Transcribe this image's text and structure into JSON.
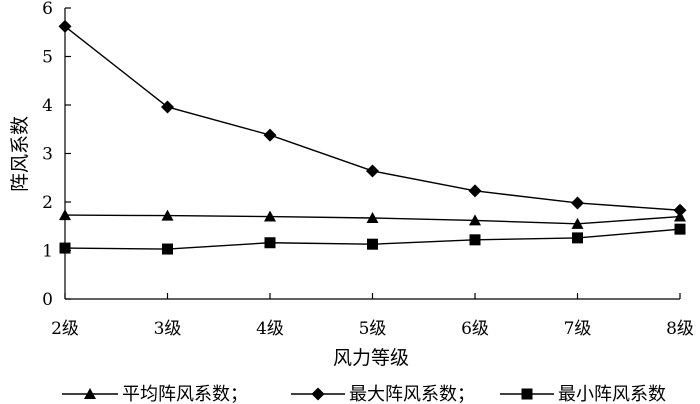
{
  "chart_data": {
    "type": "line",
    "categories": [
      "2级",
      "3级",
      "4级",
      "5级",
      "6级",
      "7级",
      "8级"
    ],
    "xlabel": "风力等级",
    "ylabel": "阵风系数",
    "ylim": [
      0,
      6
    ],
    "yticks": [
      "0",
      "1",
      "2",
      "3",
      "4",
      "5",
      "6"
    ],
    "grid": false,
    "legend_position": "bottom",
    "series": [
      {
        "name": "平均阵风系数；",
        "marker": "triangle",
        "values": [
          1.73,
          1.72,
          1.7,
          1.67,
          1.62,
          1.55,
          1.7
        ]
      },
      {
        "name": "最大阵风系数；",
        "marker": "diamond",
        "values": [
          5.62,
          3.96,
          3.38,
          2.64,
          2.23,
          1.98,
          1.83
        ]
      },
      {
        "name": "最小阵风系数",
        "marker": "square",
        "values": [
          1.05,
          1.03,
          1.16,
          1.13,
          1.22,
          1.26,
          1.44
        ]
      }
    ]
  }
}
